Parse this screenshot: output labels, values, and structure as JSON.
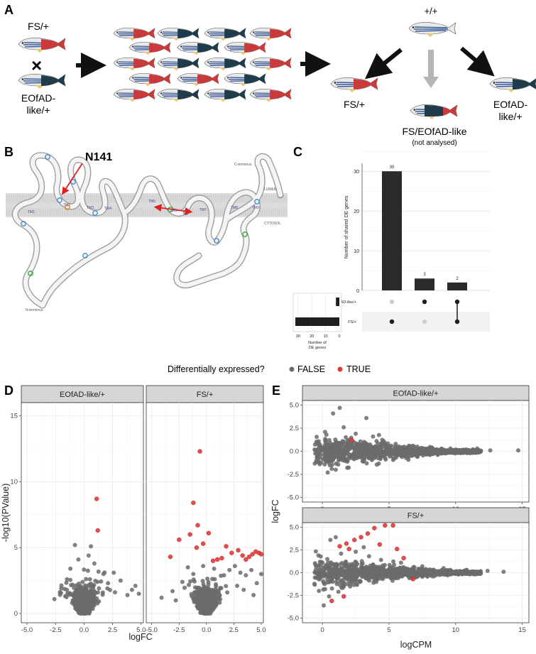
{
  "panel_letters": {
    "a": "A",
    "b": "B",
    "c": "C",
    "d": "D",
    "e": "E"
  },
  "panel_a": {
    "parent_top": "FS/+",
    "parent_bottom": [
      "EOfAD-",
      "like/+"
    ],
    "cross_symbol": "×",
    "wt_label": "+/+",
    "offspring_left": "FS/+",
    "offspring_right": [
      "EOfAD-",
      "like/+"
    ],
    "offspring_middle": "FS/EOfAD-like",
    "offspring_middle_note": "(not analysed)",
    "colors": {
      "wt_stripe": "#3a5a9a",
      "fs_red": "#c93b3b",
      "eofad_dark": "#1f3c4a",
      "arrow_grey": "#b5b5b5"
    }
  },
  "panel_b": {
    "callout": "N141",
    "annotations": {
      "c_terminus": "C-terminus",
      "n_terminus": "N-terminus",
      "lumen": "LUMEN",
      "cytosol": "CYTOSOL"
    },
    "tm_labels": [
      "TM1",
      "TM2",
      "TM3",
      "TM4",
      "TM5",
      "TM6",
      "TM7",
      "TM8",
      "TM9"
    ],
    "colors": {
      "membrane": "#dcdcdc",
      "residue": "#f2f2f2",
      "arrow": "#e02020",
      "blue": "#4a8fd0",
      "green": "#3cae3c",
      "orange": "#e08a2a"
    }
  },
  "chart_data": [
    {
      "type": "bar",
      "panel": "C",
      "title": "",
      "ylabel": "Number of shared DE genes",
      "ylim": [
        0,
        32
      ],
      "yticks": [
        0,
        10,
        20,
        30
      ],
      "categories": [
        "FS/+ only",
        "EOfAD-like/+ only",
        "shared"
      ],
      "values": [
        30,
        3,
        2
      ],
      "matrix_rows": [
        "EOfAD-like/+",
        "FS/+"
      ],
      "matrix": [
        [
          false,
          true
        ],
        [
          true,
          false
        ],
        [
          true,
          true
        ]
      ],
      "set_sizes": {
        "axis_label": "Number of DE genes",
        "ticks": [
          30,
          20,
          10,
          0
        ],
        "values": [
          {
            "set": "EOfAD-like/+",
            "value": 2.5
          },
          {
            "set": "FS/+",
            "value": 32
          }
        ]
      }
    },
    {
      "type": "scatter",
      "panel": "D",
      "legend_title": "Differentially expressed?",
      "legend": [
        {
          "name": "FALSE",
          "color": "#6b6b6b"
        },
        {
          "name": "TRUE",
          "color": "#e03a3a"
        }
      ],
      "legend_placement": "top",
      "facets": [
        "EOfAD-like/+",
        "FS/+"
      ],
      "xlabel": "logFC",
      "ylabel": "-log10(PValue)",
      "xlim": [
        -5.5,
        5.2
      ],
      "ylim": [
        -0.7,
        16
      ],
      "xticks": [
        -5.0,
        -2.5,
        0.0,
        2.5,
        5.0
      ],
      "yticks": [
        0,
        5,
        10,
        15
      ],
      "grid": true,
      "series": [
        {
          "facet": "EOfAD-like/+",
          "name": "TRUE",
          "points": [
            [
              1.1,
              8.7
            ],
            [
              1.2,
              6.3
            ]
          ]
        },
        {
          "facet": "EOfAD-like/+",
          "name": "FALSE",
          "points": [
            [
              -0.8,
              5.2
            ],
            [
              0.6,
              5.1
            ],
            [
              -2.6,
              1.1
            ],
            [
              -2.0,
              1.9
            ],
            [
              2.6,
              3.1
            ],
            [
              3.2,
              2.5
            ],
            [
              4.2,
              1.8
            ],
            [
              4.5,
              2.1
            ],
            [
              3.8,
              1.4
            ],
            [
              2.1,
              2.3
            ],
            [
              1.7,
              3.0
            ],
            [
              -1.5,
              2.6
            ],
            [
              -1.2,
              3.4
            ],
            [
              0.9,
              3.8
            ],
            [
              -0.5,
              4.1
            ],
            [
              0.4,
              4.4
            ],
            [
              4.8,
              1.5
            ]
          ]
        },
        {
          "facet": "FS/+",
          "name": "TRUE",
          "points": [
            [
              -0.6,
              12.3
            ],
            [
              -1.2,
              8.4
            ],
            [
              -0.8,
              6.7
            ],
            [
              0.2,
              6.1
            ],
            [
              -1.5,
              6.0
            ],
            [
              -2.5,
              5.6
            ],
            [
              -3.3,
              4.3
            ],
            [
              -0.3,
              5.3
            ],
            [
              -0.9,
              5.0
            ],
            [
              1.8,
              5.1
            ],
            [
              2.3,
              4.6
            ],
            [
              2.9,
              4.8
            ],
            [
              3.3,
              4.4
            ],
            [
              3.9,
              4.3
            ],
            [
              4.2,
              4.5
            ],
            [
              4.5,
              4.7
            ],
            [
              4.8,
              4.6
            ],
            [
              5.0,
              4.5
            ],
            [
              1.4,
              4.2
            ],
            [
              1.0,
              4.1
            ],
            [
              0.6,
              4.0
            ],
            [
              3.6,
              4.1
            ]
          ]
        },
        {
          "facet": "FS/+",
          "name": "FALSE",
          "points": [
            [
              -1.7,
              3.5
            ],
            [
              -2.2,
              2.4
            ],
            [
              -3.1,
              1.7
            ],
            [
              -4.1,
              1.2
            ],
            [
              2.1,
              3.3
            ],
            [
              2.6,
              3.6
            ],
            [
              3.1,
              3.1
            ],
            [
              3.6,
              2.9
            ],
            [
              4.1,
              3.3
            ],
            [
              4.6,
              2.3
            ],
            [
              5.0,
              3.0
            ],
            [
              1.6,
              2.9
            ],
            [
              -1.2,
              3.0
            ],
            [
              0.7,
              3.4
            ],
            [
              -0.3,
              3.6
            ],
            [
              2.8,
              2.1
            ],
            [
              3.4,
              1.8
            ],
            [
              4.3,
              1.4
            ],
            [
              -2.8,
              1.0
            ],
            [
              1.9,
              1.6
            ]
          ]
        }
      ]
    },
    {
      "type": "scatter",
      "panel": "E",
      "facets": [
        "EOfAD-like/+",
        "FS/+"
      ],
      "xlabel": "logCPM",
      "ylabel": "logFC",
      "xlim": [
        -1.5,
        15.5
      ],
      "ylim": [
        -5.5,
        5.5
      ],
      "xticks": [
        0,
        5,
        10,
        15
      ],
      "yticks": [
        -5.0,
        -2.5,
        0.0,
        2.5,
        5.0
      ],
      "grid": true,
      "series": [
        {
          "facet": "EOfAD-like/+",
          "name": "TRUE",
          "points": [
            [
              2.2,
              1.2
            ]
          ]
        },
        {
          "facet": "EOfAD-like/+",
          "name": "FALSE",
          "points": [
            [
              1.3,
              4.7
            ],
            [
              0.8,
              4.1
            ],
            [
              3.3,
              3.6
            ],
            [
              1.6,
              2.6
            ],
            [
              0.2,
              2.1
            ],
            [
              0.4,
              -2.3
            ],
            [
              0.7,
              -1.9
            ],
            [
              -0.2,
              -1.4
            ],
            [
              2.5,
              1.9
            ],
            [
              3.8,
              1.6
            ],
            [
              4.6,
              1.1
            ],
            [
              5.5,
              0.8
            ],
            [
              1.0,
              -2.0
            ],
            [
              0.3,
              1.8
            ],
            [
              6.5,
              0.6
            ],
            [
              8.2,
              0.4
            ],
            [
              9.6,
              0.3
            ],
            [
              11.3,
              0.2
            ],
            [
              12.6,
              0.1
            ],
            [
              14.7,
              0.1
            ]
          ]
        },
        {
          "facet": "FS/+",
          "name": "TRUE",
          "points": [
            [
              4.7,
              5.2
            ],
            [
              5.3,
              5.2
            ],
            [
              3.9,
              4.9
            ],
            [
              3.4,
              4.3
            ],
            [
              2.9,
              3.9
            ],
            [
              2.4,
              3.6
            ],
            [
              1.8,
              3.2
            ],
            [
              1.3,
              2.9
            ],
            [
              4.3,
              3.1
            ],
            [
              5.6,
              2.6
            ],
            [
              6.1,
              1.6
            ],
            [
              0.7,
              -3.1
            ],
            [
              1.6,
              -2.6
            ],
            [
              6.8,
              -0.7
            ],
            [
              2.0,
              2.6
            ]
          ]
        },
        {
          "facet": "FS/+",
          "name": "FALSE",
          "points": [
            [
              1.0,
              3.9
            ],
            [
              0.6,
              3.6
            ],
            [
              2.5,
              2.3
            ],
            [
              3.1,
              2.8
            ],
            [
              1.4,
              2.1
            ],
            [
              -0.3,
              1.9
            ],
            [
              0.1,
              -3.6
            ],
            [
              0.5,
              -2.6
            ],
            [
              1.2,
              -2.1
            ],
            [
              0.2,
              -1.8
            ],
            [
              3.5,
              1.8
            ],
            [
              4.4,
              1.4
            ],
            [
              5.9,
              1.1
            ],
            [
              7.5,
              0.7
            ],
            [
              9.1,
              0.5
            ],
            [
              10.8,
              0.3
            ],
            [
              12.4,
              0.2
            ],
            [
              13.6,
              0.1
            ]
          ]
        }
      ]
    }
  ]
}
